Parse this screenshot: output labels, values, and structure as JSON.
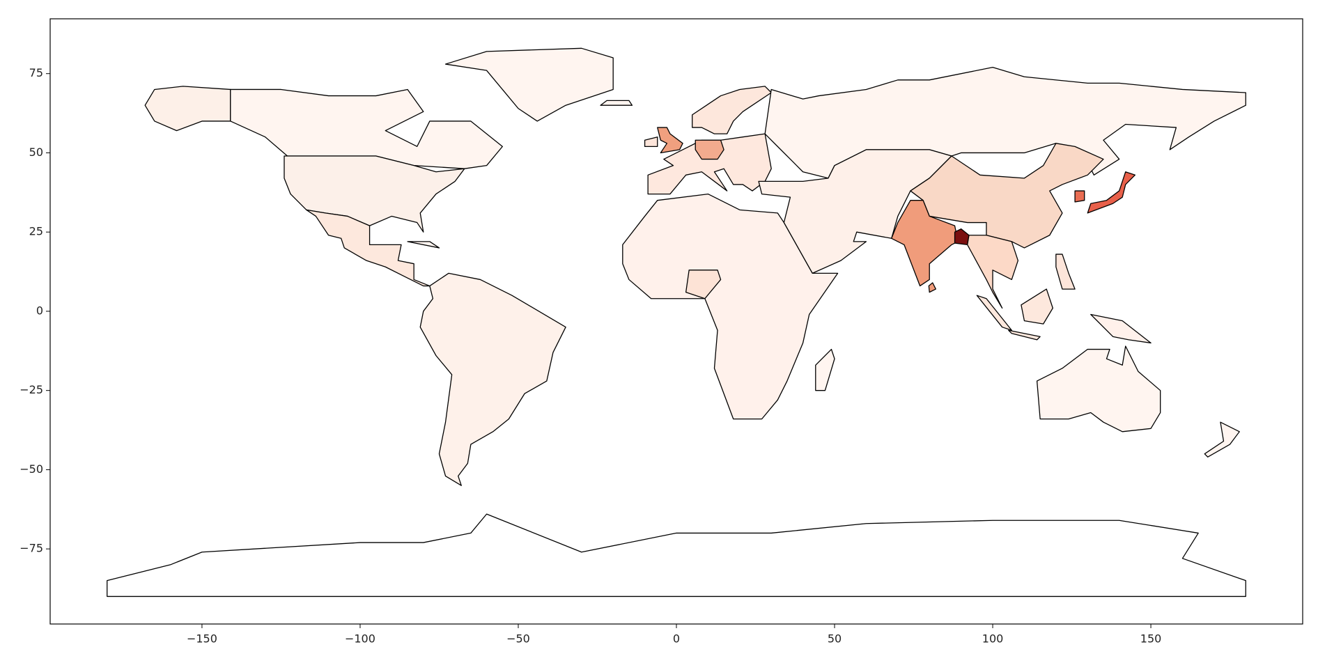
{
  "chart_data": {
    "type": "map",
    "xlim": [
      -198,
      198
    ],
    "ylim": [
      -98.7,
      92.3
    ],
    "xticks": [
      {
        "value": -150,
        "label": "−150"
      },
      {
        "value": -100,
        "label": "−100"
      },
      {
        "value": -50,
        "label": "−50"
      },
      0,
      50,
      100,
      150
    ],
    "yticks": [
      {
        "value": -75,
        "label": "−75"
      },
      {
        "value": -50,
        "label": "−50"
      },
      {
        "value": -25,
        "label": "−25"
      },
      0,
      25,
      50,
      75
    ]
  }
}
